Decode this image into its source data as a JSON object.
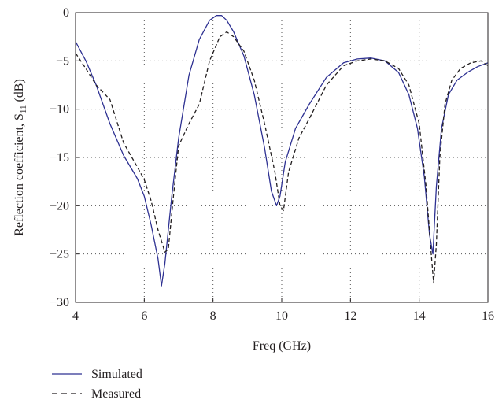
{
  "chart_data": {
    "type": "line",
    "title": "",
    "xlabel": "Freq (GHz)",
    "ylabel": "Reflection coefficient, S",
    "ylabel_subscript": "11",
    "ylabel_unit": " (dB)",
    "xlim": [
      4,
      16
    ],
    "ylim": [
      -30,
      0
    ],
    "xticks": [
      4,
      6,
      8,
      10,
      12,
      14,
      16
    ],
    "yticks": [
      0,
      -5,
      -10,
      -15,
      -20,
      -25,
      -30
    ],
    "xtick_labels": [
      "4",
      "6",
      "8",
      "10",
      "12",
      "14",
      "16"
    ],
    "ytick_labels": [
      "0",
      "−5",
      "−10",
      "−15",
      "−20",
      "−25",
      "−30"
    ],
    "grid": true,
    "legend_position": "below",
    "series": [
      {
        "name": "Simulated",
        "style": "solid",
        "color": "#2e3192",
        "x": [
          4.0,
          4.3,
          4.6,
          5.0,
          5.4,
          5.8,
          6.0,
          6.2,
          6.4,
          6.5,
          6.6,
          6.8,
          7.0,
          7.3,
          7.6,
          7.9,
          8.1,
          8.25,
          8.4,
          8.6,
          8.9,
          9.2,
          9.5,
          9.7,
          9.85,
          9.95,
          10.1,
          10.4,
          10.8,
          11.3,
          11.8,
          12.2,
          12.6,
          13.0,
          13.4,
          13.7,
          13.95,
          14.15,
          14.3,
          14.4,
          14.5,
          14.65,
          14.85,
          15.1,
          15.4,
          15.7,
          16.0
        ],
        "y": [
          -3,
          -5,
          -7.5,
          -11.5,
          -14.8,
          -17.2,
          -19,
          -22,
          -25.5,
          -28.3,
          -26,
          -19,
          -13,
          -6.5,
          -2.8,
          -0.8,
          -0.3,
          -0.3,
          -0.8,
          -2,
          -4.5,
          -8.5,
          -14,
          -18.5,
          -20,
          -19,
          -15.5,
          -12,
          -9.5,
          -6.7,
          -5.2,
          -4.8,
          -4.7,
          -5,
          -6.2,
          -8.5,
          -12,
          -17,
          -23,
          -25,
          -18,
          -12,
          -8.5,
          -7,
          -6.2,
          -5.6,
          -5.2
        ]
      },
      {
        "name": "Measured",
        "style": "dashed",
        "color": "#231f20",
        "x": [
          4.0,
          4.3,
          4.6,
          5.0,
          5.4,
          5.8,
          6.0,
          6.2,
          6.4,
          6.6,
          6.7,
          6.85,
          7.0,
          7.3,
          7.6,
          7.9,
          8.2,
          8.4,
          8.6,
          8.9,
          9.2,
          9.5,
          9.8,
          9.95,
          10.05,
          10.2,
          10.5,
          10.8,
          11.3,
          11.8,
          12.2,
          12.6,
          13.0,
          13.4,
          13.7,
          14.0,
          14.2,
          14.35,
          14.42,
          14.5,
          14.6,
          14.75,
          14.95,
          15.2,
          15.5,
          15.8,
          16.0
        ],
        "y": [
          -4.2,
          -5.8,
          -7.5,
          -9,
          -13.5,
          -16,
          -17.3,
          -19.5,
          -22.5,
          -24.8,
          -24.5,
          -19,
          -13.8,
          -11.5,
          -9.5,
          -5,
          -2.5,
          -2,
          -2.5,
          -4,
          -7,
          -11.5,
          -16.5,
          -20,
          -20.5,
          -16.5,
          -13,
          -11,
          -7.5,
          -5.5,
          -5,
          -4.8,
          -5,
          -5.8,
          -7.5,
          -11.5,
          -18,
          -25,
          -28,
          -24,
          -15,
          -9.5,
          -7,
          -5.8,
          -5.2,
          -5,
          -5.5
        ]
      }
    ]
  }
}
